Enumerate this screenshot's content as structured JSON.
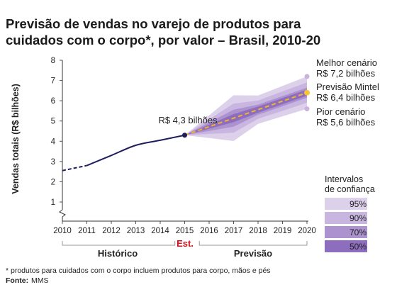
{
  "chart_data": {
    "type": "line",
    "title_line1": "Previsão de vendas no varejo de produtos para",
    "title_line2": "cuidados com o corpo*, por valor – Brasil, 2010-20",
    "ylabel": "Vendas totais (R$ bilhões)",
    "ylim": [
      1,
      8
    ],
    "y_ticks": [
      1,
      2,
      3,
      4,
      5,
      6,
      7,
      8
    ],
    "y_axis_break": true,
    "x_ticks": [
      2010,
      2011,
      2012,
      2013,
      2014,
      2015,
      2016,
      2017,
      2018,
      2019,
      2020
    ],
    "xlim": [
      2010,
      2020
    ],
    "historical": {
      "x": [
        2010,
        2011,
        2012,
        2013,
        2014,
        2015
      ],
      "y": [
        2.55,
        2.8,
        3.3,
        3.8,
        4.05,
        4.3
      ],
      "dashed_until": 2011
    },
    "forecast": {
      "x": [
        2015,
        2016,
        2017,
        2018,
        2019,
        2020
      ],
      "central": [
        4.3,
        4.72,
        5.14,
        5.56,
        5.98,
        6.4
      ],
      "best_case": 7.2,
      "worst_case": 5.6,
      "intervals": [
        {
          "label": "95%",
          "upper": [
            4.3,
            5.28,
            6.27,
            6.26,
            6.73,
            7.2
          ],
          "lower": [
            4.3,
            4.16,
            4.01,
            4.86,
            5.23,
            5.6
          ]
        },
        {
          "label": "90%",
          "upper": [
            4.3,
            5.08,
            5.86,
            6.01,
            6.46,
            6.9
          ],
          "lower": [
            4.3,
            4.36,
            4.42,
            5.11,
            5.5,
            5.9
          ]
        },
        {
          "label": "70%",
          "upper": [
            4.3,
            4.93,
            5.56,
            5.81,
            6.23,
            6.65
          ],
          "lower": [
            4.3,
            4.51,
            4.72,
            5.31,
            5.73,
            6.15
          ]
        },
        {
          "label": "50%",
          "upper": [
            4.3,
            4.82,
            5.34,
            5.71,
            6.13,
            6.55
          ],
          "lower": [
            4.3,
            4.62,
            4.94,
            5.41,
            5.83,
            6.25
          ]
        }
      ]
    },
    "annotations": {
      "point_2015": "R$ 4,3 bilhões",
      "best_label": "Melhor cenário",
      "best_value": "R$ 7,2 bilhões",
      "forecast_label": "Previsão Mintel",
      "forecast_value": "R$ 6,4 bilhões",
      "worst_label": "Pior cenário",
      "worst_value": "R$ 5,6 bilhões"
    },
    "legend": {
      "title_line1": "Intervalos",
      "title_line2": "de confiança",
      "placement": "right"
    },
    "periods": {
      "historico": "Histórico",
      "est": "Est.",
      "previsao": "Previsão"
    },
    "colors": {
      "line": "#1f1d5c",
      "band_95": "#ddd0ea",
      "band_90": "#c9b6e0",
      "band_70": "#ac92cf",
      "band_50": "#8d6dbd",
      "forecast_dash": "#f2b230",
      "best_dot": "#c9b2dc",
      "forecast_dot": "#f6c531",
      "worst_dot": "#c9b2dc",
      "est": "#d0121b"
    }
  },
  "footnote": "* produtos para cuidados com o corpo incluem produtos para corpo, mãos e pés",
  "source_label": "Fonte:",
  "source_value": "MMS"
}
